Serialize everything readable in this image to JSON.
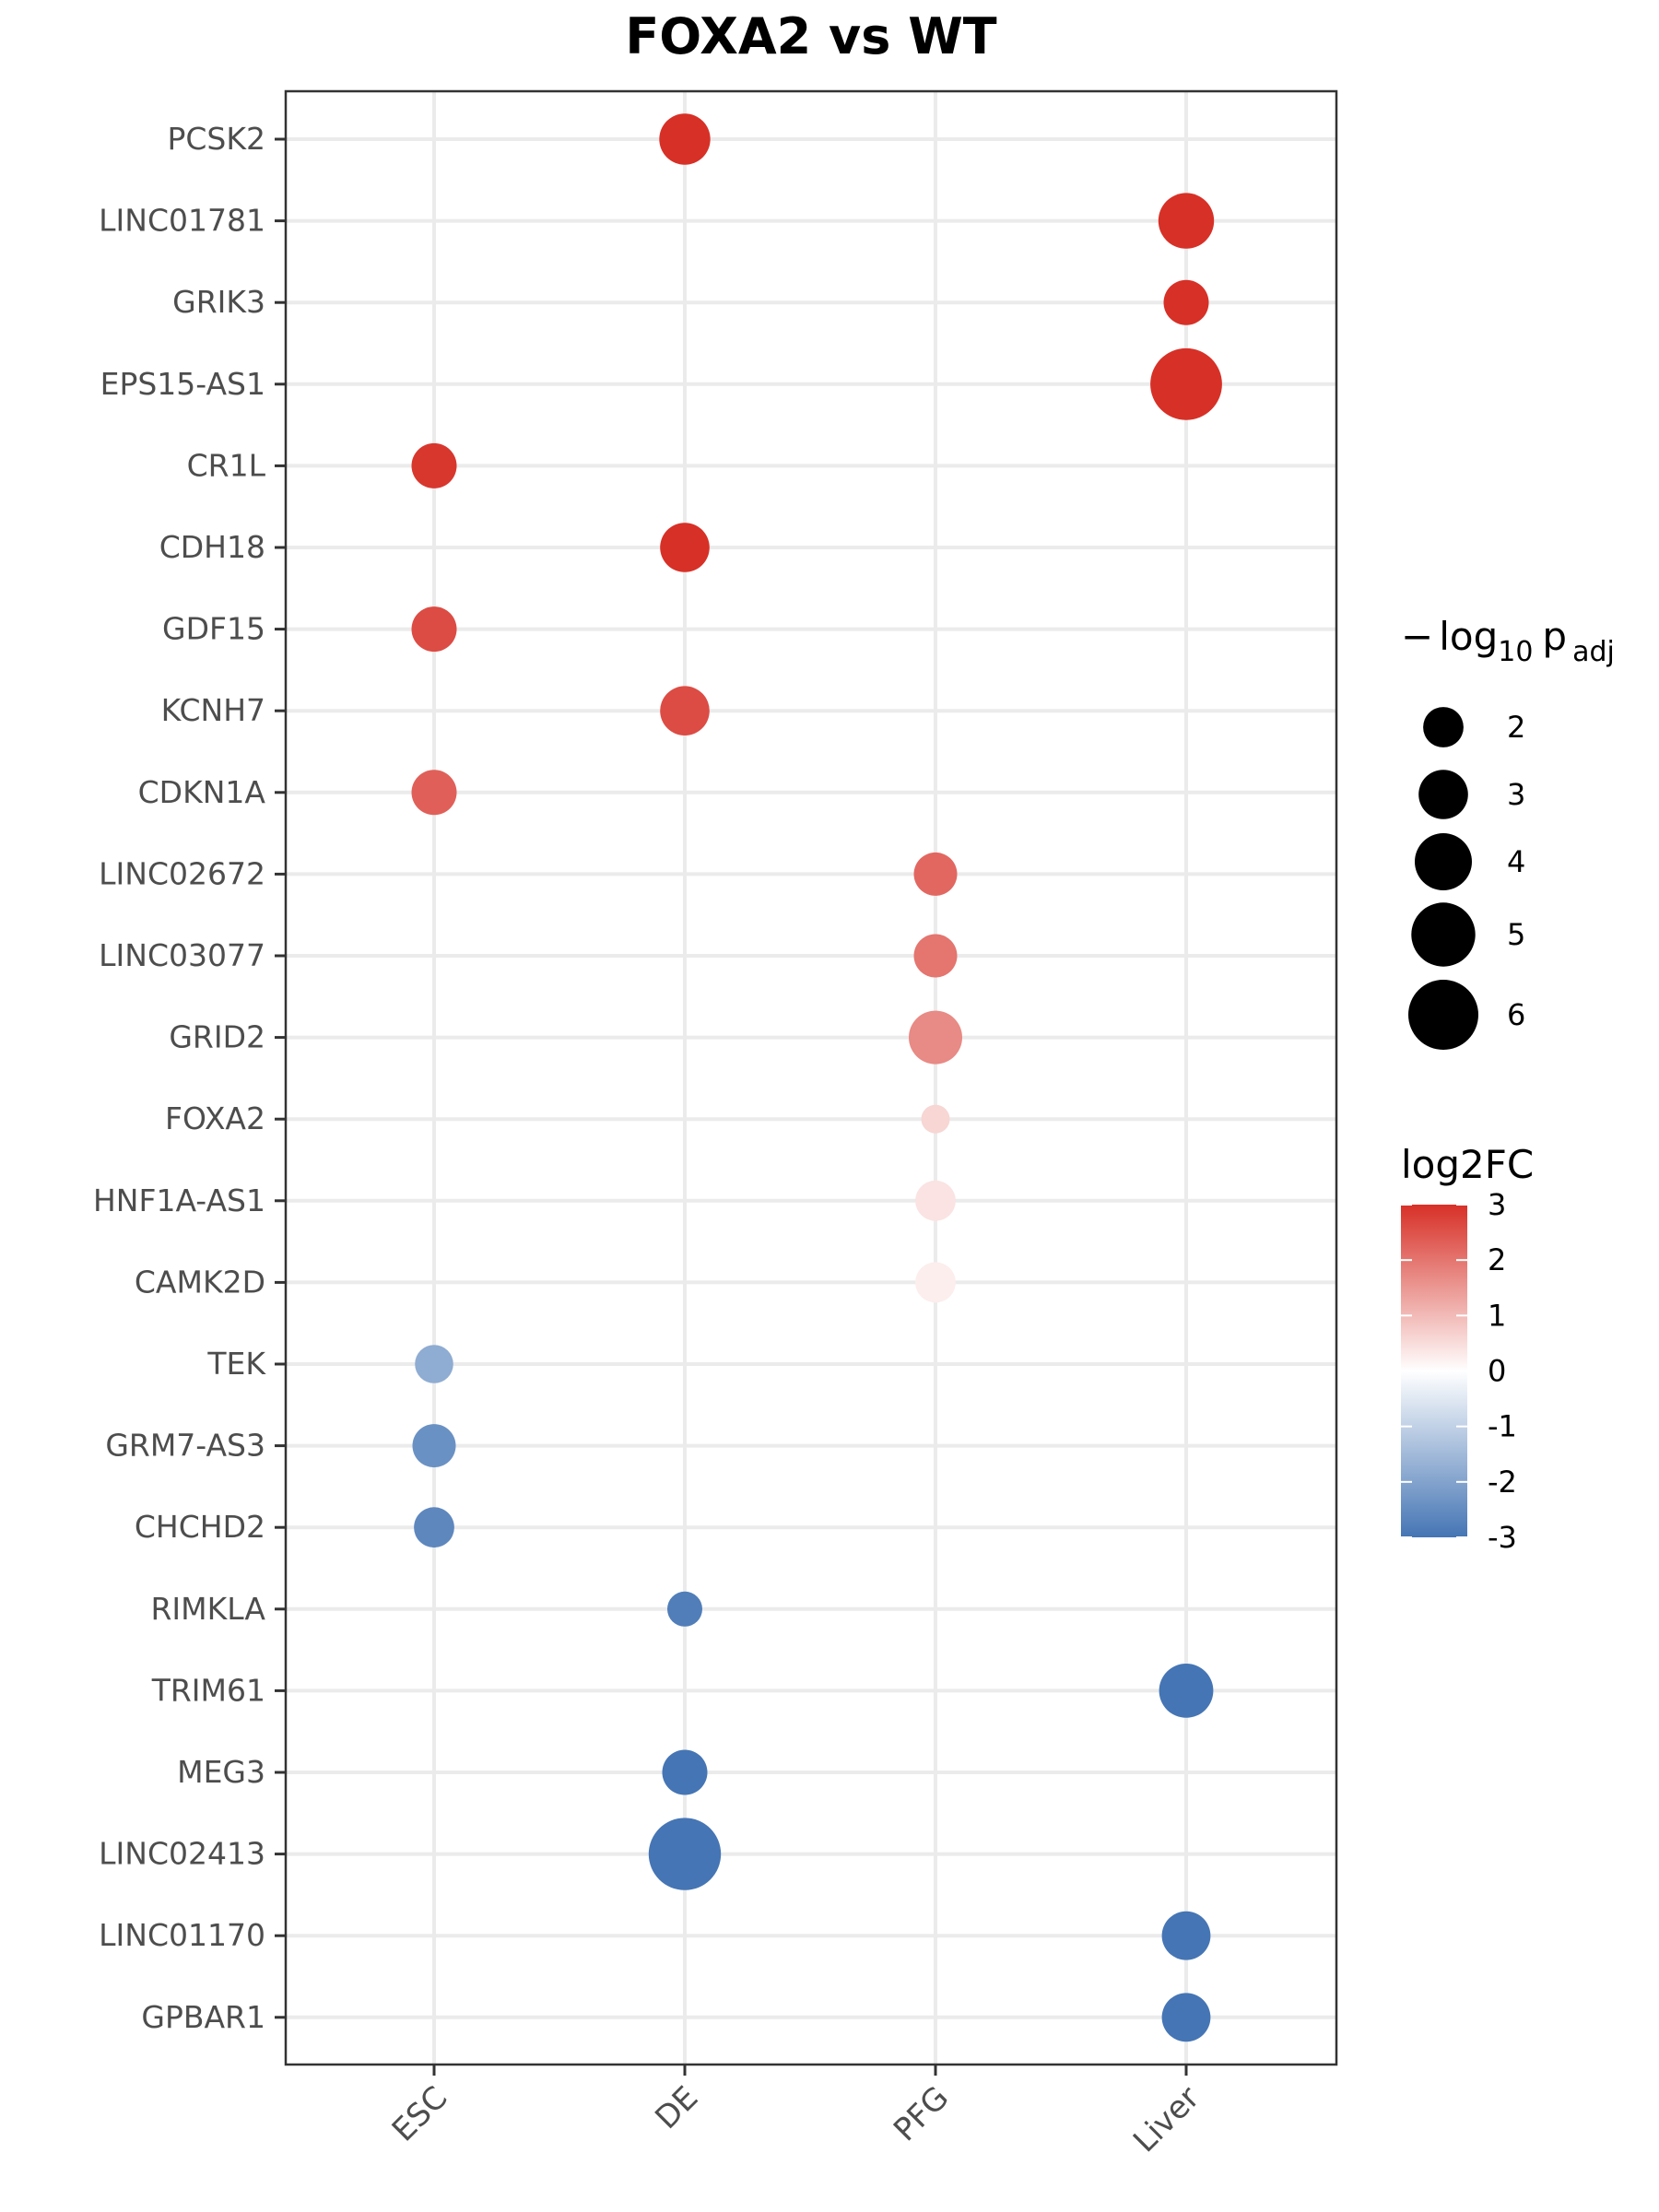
{
  "chart_data": {
    "type": "scatter",
    "title": "FOXA2 vs WT",
    "xlabel": "",
    "ylabel": "",
    "x_categories": [
      "ESC",
      "DE",
      "PFG",
      "Liver"
    ],
    "y_categories": [
      "PCSK2",
      "LINC01781",
      "GRIK3",
      "EPS15-AS1",
      "CR1L",
      "CDH18",
      "GDF15",
      "KCNH7",
      "CDKN1A",
      "LINC02672",
      "LINC03077",
      "GRID2",
      "FOXA2",
      "HNF1A-AS1",
      "CAMK2D",
      "TEK",
      "GRM7-AS3",
      "CHCHD2",
      "RIMKLA",
      "TRIM61",
      "MEG3",
      "LINC02413",
      "LINC01170",
      "GPBAR1"
    ],
    "points": [
      {
        "gene": "PCSK2",
        "stage": "DE",
        "log2FC": 3.0,
        "neglog10padj": 3.2
      },
      {
        "gene": "LINC01781",
        "stage": "Liver",
        "log2FC": 3.0,
        "neglog10padj": 3.8
      },
      {
        "gene": "GRIK3",
        "stage": "Liver",
        "log2FC": 3.0,
        "neglog10padj": 2.5
      },
      {
        "gene": "EPS15-AS1",
        "stage": "Liver",
        "log2FC": 3.0,
        "neglog10padj": 6.3
      },
      {
        "gene": "CR1L",
        "stage": "ESC",
        "log2FC": 2.9,
        "neglog10padj": 2.5
      },
      {
        "gene": "CDH18",
        "stage": "DE",
        "log2FC": 3.0,
        "neglog10padj": 3.0
      },
      {
        "gene": "GDF15",
        "stage": "ESC",
        "log2FC": 2.6,
        "neglog10padj": 2.5
      },
      {
        "gene": "KCNH7",
        "stage": "DE",
        "log2FC": 2.6,
        "neglog10padj": 3.0
      },
      {
        "gene": "CDKN1A",
        "stage": "ESC",
        "log2FC": 2.3,
        "neglog10padj": 2.5
      },
      {
        "gene": "LINC02672",
        "stage": "PFG",
        "log2FC": 2.2,
        "neglog10padj": 2.3
      },
      {
        "gene": "LINC03077",
        "stage": "PFG",
        "log2FC": 2.0,
        "neglog10padj": 2.3
      },
      {
        "gene": "GRID2",
        "stage": "PFG",
        "log2FC": 1.7,
        "neglog10padj": 3.5
      },
      {
        "gene": "FOXA2",
        "stage": "PFG",
        "log2FC": 0.6,
        "neglog10padj": 1.0
      },
      {
        "gene": "HNF1A-AS1",
        "stage": "PFG",
        "log2FC": 0.4,
        "neglog10padj": 2.0
      },
      {
        "gene": "CAMK2D",
        "stage": "PFG",
        "log2FC": 0.25,
        "neglog10padj": 2.0
      },
      {
        "gene": "TEK",
        "stage": "ESC",
        "log2FC": -1.8,
        "neglog10padj": 1.8
      },
      {
        "gene": "GRM7-AS3",
        "stage": "ESC",
        "log2FC": -2.4,
        "neglog10padj": 2.3
      },
      {
        "gene": "CHCHD2",
        "stage": "ESC",
        "log2FC": -2.6,
        "neglog10padj": 2.0
      },
      {
        "gene": "RIMKLA",
        "stage": "DE",
        "log2FC": -2.8,
        "neglog10padj": 1.5
      },
      {
        "gene": "TRIM61",
        "stage": "Liver",
        "log2FC": -3.0,
        "neglog10padj": 3.6
      },
      {
        "gene": "MEG3",
        "stage": "DE",
        "log2FC": -3.0,
        "neglog10padj": 2.5
      },
      {
        "gene": "LINC02413",
        "stage": "DE",
        "log2FC": -3.0,
        "neglog10padj": 6.4
      },
      {
        "gene": "LINC01170",
        "stage": "Liver",
        "log2FC": -3.0,
        "neglog10padj": 2.9
      },
      {
        "gene": "GPBAR1",
        "stage": "Liver",
        "log2FC": -3.0,
        "neglog10padj": 2.9
      }
    ],
    "size_legend": {
      "title_parts": {
        "minus": "−",
        "log": "log",
        "log_sub": "10",
        "p": "p",
        "p_sub": "adj"
      },
      "values": [
        2,
        3,
        4,
        5,
        6
      ],
      "labels": [
        "2",
        "3",
        "4",
        "5",
        "6"
      ]
    },
    "color_legend": {
      "title": "log2FC",
      "ticks": [
        3,
        2,
        1,
        0,
        -1,
        -2,
        -3
      ],
      "tick_labels": [
        "3",
        "2",
        "1",
        "0",
        "-1",
        "-2",
        "-3"
      ],
      "low_color": "#4575b4",
      "mid_color": "#ffffff",
      "high_color": "#d73027",
      "limits": [
        -3,
        3
      ]
    },
    "grid": true,
    "legend_position": "right"
  }
}
